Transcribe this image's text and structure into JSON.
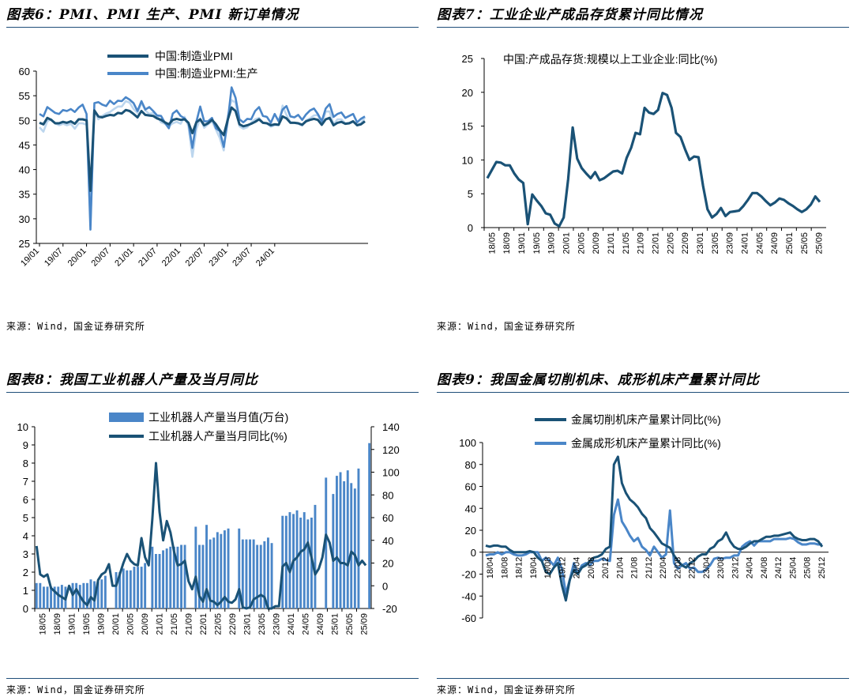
{
  "panels": [
    {
      "title": "图表6：PMI、PMI 生产、PMI 新订单情况",
      "source": "来源：Wind，国金证券研究所",
      "chart_data": {
        "type": "line",
        "series": [
          {
            "name": "中国:制造业PMI",
            "color": "#1a5276",
            "values": [
              49.5,
              49.2,
              50.5,
              50.1,
              49.4,
              49.4,
              49.7,
              49.5,
              49.8,
              49.3,
              50.2,
              50.2,
              50.0,
              35.7,
              52.0,
              50.8,
              50.6,
              50.9,
              51.1,
              51.0,
              51.5,
              51.4,
              52.1,
              51.9,
              51.3,
              50.6,
              51.9,
              51.1,
              51.0,
              50.9,
              50.4,
              50.1,
              49.6,
              49.2,
              50.1,
              50.3,
              50.1,
              50.2,
              49.5,
              47.4,
              49.6,
              50.2,
              49.0,
              49.4,
              50.1,
              49.2,
              48.0,
              47.0,
              50.1,
              52.6,
              51.9,
              49.2,
              48.8,
              49.0,
              49.3,
              49.7,
              50.2,
              49.5,
              49.4,
              49.0,
              49.2,
              49.1,
              50.8,
              50.4,
              49.5,
              49.5,
              49.4,
              49.1,
              49.8,
              50.1,
              50.3,
              50.1,
              49.1,
              50.2,
              50.5,
              49.0,
              49.5,
              49.7,
              49.3,
              49.4,
              49.8,
              49.0,
              49.2,
              49.8
            ]
          },
          {
            "name": "中国:制造业PMI:生产",
            "color": "#4a86c8",
            "values": [
              51.3,
              50.8,
              52.7,
              52.1,
              51.5,
              51.3,
              52.1,
              51.9,
              52.3,
              51.7,
              52.6,
              53.2,
              51.3,
              27.8,
              53.5,
              53.7,
              53.2,
              52.9,
              54.0,
              53.3,
              54.0,
              53.9,
              54.7,
              54.2,
              53.5,
              51.9,
              53.9,
              52.2,
              52.7,
              51.9,
              51.0,
              50.9,
              49.5,
              48.4,
              51.4,
              52.0,
              50.9,
              50.4,
              49.5,
              44.4,
              49.7,
              52.8,
              49.8,
              49.8,
              50.5,
              48.4,
              47.8,
              44.6,
              49.8,
              56.7,
              54.6,
              50.2,
              49.6,
              50.3,
              50.2,
              51.9,
              52.7,
              50.9,
              50.7,
              49.5,
              51.3,
              49.8,
              52.2,
              52.9,
              50.8,
              50.6,
              51.1,
              50.1,
              51.2,
              52.0,
              52.4,
              51.3,
              49.8,
              52.4,
              53.3,
              50.7,
              51.3,
              51.6,
              50.5,
              50.9,
              51.3,
              49.6,
              50.3,
              50.8
            ]
          },
          {
            "name": "",
            "color": "#bcd6ee",
            "values": [
              48.6,
              47.7,
              49.8,
              50.2,
              49.4,
              49.0,
              49.3,
              49.0,
              49.3,
              48.3,
              49.4,
              49.4,
              49.1,
              29.3,
              52.0,
              50.2,
              50.9,
              51.4,
              51.7,
              52.3,
              52.8,
              52.8,
              53.9,
              53.6,
              52.3,
              51.5,
              53.6,
              52.0,
              51.3,
              51.5,
              50.9,
              49.6,
              49.3,
              48.8,
              49.4,
              49.7,
              49.3,
              50.7,
              48.8,
              42.6,
              48.2,
              50.4,
              48.5,
              49.2,
              49.8,
              48.1,
              46.4,
              43.9,
              50.9,
              54.1,
              53.6,
              48.8,
              48.3,
              48.6,
              49.5,
              50.2,
              50.5,
              49.5,
              49.4,
              48.7,
              49.0,
              49.0,
              53.0,
              51.1,
              49.6,
              49.5,
              49.3,
              48.9,
              50.0,
              50.4,
              51.0,
              51.1,
              49.2,
              51.8,
              51.8,
              49.2,
              50.2,
              50.2,
              49.4,
              49.5,
              49.7,
              49.1,
              49.4,
              50.6
            ]
          }
        ],
        "x_labels": [
          "19/01",
          "19/07",
          "20/01",
          "20/07",
          "21/01",
          "21/07",
          "22/01",
          "22/07",
          "23/01",
          "23/07",
          "24/01"
        ],
        "y_ticks": [
          25,
          30,
          35,
          40,
          45,
          50,
          55,
          60
        ],
        "ylim": [
          25,
          60
        ]
      }
    },
    {
      "title": "图表7：工业企业产成品存货累计同比情况",
      "source": "来源：Wind，国金证券研究所",
      "chart_data": {
        "type": "line",
        "series": [
          {
            "name": "中国:产成品存货:规模以上工业企业:同比(%)",
            "color": "#1a5276",
            "values": [
              7.3,
              8.5,
              9.7,
              9.6,
              9.2,
              9.2,
              8.0,
              7.1,
              6.6,
              0.5,
              4.9,
              4.0,
              3.2,
              2.1,
              1.9,
              0.6,
              0.2,
              1.5,
              7.2,
              14.8,
              10.2,
              8.8,
              8.0,
              7.3,
              8.2,
              7.0,
              7.3,
              7.8,
              8.3,
              8.4,
              8.0,
              10.3,
              11.8,
              14.0,
              13.8,
              17.7,
              17.0,
              16.8,
              17.4,
              19.9,
              19.6,
              17.7,
              14.0,
              13.4,
              11.6,
              10.0,
              10.5,
              10.4,
              6.2,
              2.7,
              1.5,
              2.0,
              2.9,
              1.7,
              2.3,
              2.4,
              2.5,
              3.2,
              4.1,
              5.1,
              5.1,
              4.6,
              3.9,
              3.3,
              3.7,
              4.3,
              4.1,
              3.6,
              3.2,
              2.7,
              2.3,
              2.7,
              3.4,
              4.6,
              3.8
            ]
          }
        ],
        "x_labels": [
          "18/05",
          "18/09",
          "19/01",
          "19/05",
          "19/09",
          "20/01",
          "20/05",
          "20/09",
          "21/01",
          "21/05",
          "21/09",
          "22/01",
          "22/05",
          "22/09",
          "23/01",
          "23/05",
          "23/09",
          "24/01",
          "24/05",
          "24/09",
          "25/01",
          "25/05",
          "25/09"
        ],
        "y_ticks": [
          0,
          5,
          10,
          15,
          20,
          25
        ],
        "ylim": [
          0,
          25
        ]
      }
    },
    {
      "title": "图表8：我国工业机器人产量及当月同比",
      "source": "来源：Wind，国金证券研究所",
      "chart_data": {
        "type": "bar",
        "series": [
          {
            "name": "工业机器人产量当月值(万台)",
            "color": "#4a86c8",
            "axis": "left",
            "values": [
              1.4,
              1.4,
              1.2,
              1.2,
              1.2,
              1.2,
              1.2,
              1.3,
              1.2,
              0,
              1.4,
              1.4,
              1.3,
              1.4,
              1.4,
              1.6,
              1.5,
              1.5,
              1.6,
              1.8,
              0,
              0,
              2.0,
              2.0,
              2.2,
              2.1,
              2.1,
              2.3,
              2.3,
              2.3,
              2.5,
              0,
              3.4,
              3.0,
              3.0,
              3.2,
              3.3,
              3.4,
              3.4,
              3.4,
              3.5,
              3.5,
              0,
              0,
              4.5,
              3.5,
              3.5,
              4.6,
              3.8,
              3.9,
              4.2,
              4.1,
              4.3,
              4.4,
              0,
              0,
              4.4,
              3.8,
              3.8,
              3.8,
              3.8,
              3.5,
              3.5,
              3.7,
              3.9,
              3.6,
              0,
              0,
              5.1,
              5.1,
              5.3,
              5.2,
              5.4,
              5.0,
              5.3,
              4.9,
              5.0,
              5.7,
              0,
              0,
              7.2,
              0,
              6.3,
              7.3,
              7.5,
              7.0,
              7.6,
              6.9,
              6.6,
              7.7,
              0,
              0,
              9.1
            ]
          },
          {
            "name": "工业机器人产量当月同比(%)",
            "color": "#1a5276",
            "axis": "right",
            "values": [
              35,
              10,
              8,
              10,
              -2,
              -5,
              -8,
              -10,
              -12,
              0,
              -8,
              -3,
              -9,
              -14,
              -17,
              -10,
              -13,
              5,
              10,
              12,
              19,
              0,
              0,
              10,
              20,
              28,
              22,
              19,
              18,
              42,
              25,
              18,
              59,
              108,
              65,
              40,
              57,
              47,
              30,
              18,
              19,
              22,
              4,
              -3,
              8,
              -9,
              -14,
              -3,
              -13,
              -14,
              -17,
              -14,
              -10,
              -14,
              -15,
              -12,
              -3,
              -19,
              -20,
              -19,
              -12,
              -10,
              -8,
              -10,
              -20,
              -20,
              -18,
              -18,
              17,
              20,
              12,
              22,
              25,
              30,
              32,
              38,
              25,
              10,
              15,
              25,
              45,
              38,
              22,
              25,
              20,
              20,
              18,
              30,
              27,
              18,
              22,
              18
            ]
          }
        ],
        "x_labels": [
          "18/05",
          "18/09",
          "19/01",
          "19/05",
          "19/09",
          "20/01",
          "20/05",
          "20/09",
          "21/01",
          "21/05",
          "21/09",
          "22/01",
          "22/05",
          "22/09",
          "23/01",
          "23/05",
          "23/09",
          "24/01",
          "24/05",
          "24/09",
          "25/01",
          "25/05",
          "25/09"
        ],
        "y_ticks_left": [
          0,
          1,
          2,
          3,
          4,
          5,
          6,
          7,
          8,
          9,
          10
        ],
        "y_ticks_right": [
          -20,
          0,
          20,
          40,
          60,
          80,
          100,
          120,
          140
        ],
        "ylim_left": [
          0,
          10
        ],
        "ylim_right": [
          -20,
          140
        ]
      }
    },
    {
      "title": "图表9：我国金属切削机床、成形机床产量累计同比",
      "source": "来源：Wind，国金证券研究所",
      "chart_data": {
        "type": "line",
        "series": [
          {
            "name": "金属切削机床产量累计同比(%)",
            "color": "#1a5276",
            "values": [
              6,
              5,
              6,
              6,
              5,
              5,
              2,
              0,
              0,
              0,
              0,
              1,
              0,
              -5,
              -8,
              -18,
              -20,
              -14,
              -10,
              -30,
              -44,
              -25,
              -16,
              -20,
              -14,
              -12,
              -8,
              -5,
              -4,
              -2,
              3,
              5,
              80,
              87,
              63,
              54,
              48,
              45,
              41,
              35,
              31,
              22,
              18,
              13,
              8,
              6,
              4,
              -3,
              -8,
              -12,
              -14,
              -10,
              -8,
              -4,
              -2,
              -2,
              3,
              5,
              10,
              12,
              18,
              10,
              5,
              3,
              3,
              5,
              8,
              10,
              10,
              12,
              14,
              14,
              15,
              15,
              16,
              17,
              18,
              14,
              12,
              11,
              11,
              12,
              12,
              10,
              5
            ]
          },
          {
            "name": "金属成形机床产量累计同比(%)",
            "color": "#4a86c8",
            "values": [
              -3,
              -2,
              -2,
              0,
              -2,
              0,
              0,
              -2,
              -3,
              -3,
              -2,
              0,
              0,
              0,
              -8,
              -5,
              -8,
              -12,
              -5,
              -15,
              -38,
              -25,
              -10,
              -20,
              -12,
              -10,
              -12,
              -8,
              -8,
              -6,
              -7,
              -8,
              34,
              48,
              28,
              22,
              15,
              10,
              13,
              5,
              2,
              -3,
              5,
              0,
              -5,
              -2,
              38,
              -10,
              -15,
              -12,
              -10,
              -15,
              -14,
              -18,
              -18,
              -16,
              -12,
              -6,
              -5,
              -6,
              -5,
              -5,
              -3,
              -3,
              5,
              8,
              10,
              6,
              10,
              10,
              10,
              10,
              12,
              12,
              12,
              12,
              13,
              12,
              9,
              7,
              7,
              8,
              8,
              7,
              7
            ]
          }
        ],
        "x_labels": [
          "18/04",
          "18/08",
          "18/12",
          "19/04",
          "19/08",
          "19/12",
          "20/04",
          "20/08",
          "20/12",
          "21/04",
          "21/08",
          "21/12",
          "22/04",
          "22/08",
          "22/12",
          "23/04",
          "23/08",
          "23/12",
          "24/04",
          "24/08",
          "24/12",
          "25/04",
          "25/08",
          "25/12"
        ],
        "y_ticks": [
          -60,
          -40,
          -20,
          0,
          20,
          40,
          60,
          80,
          100
        ],
        "ylim": [
          -60,
          100
        ]
      }
    }
  ]
}
